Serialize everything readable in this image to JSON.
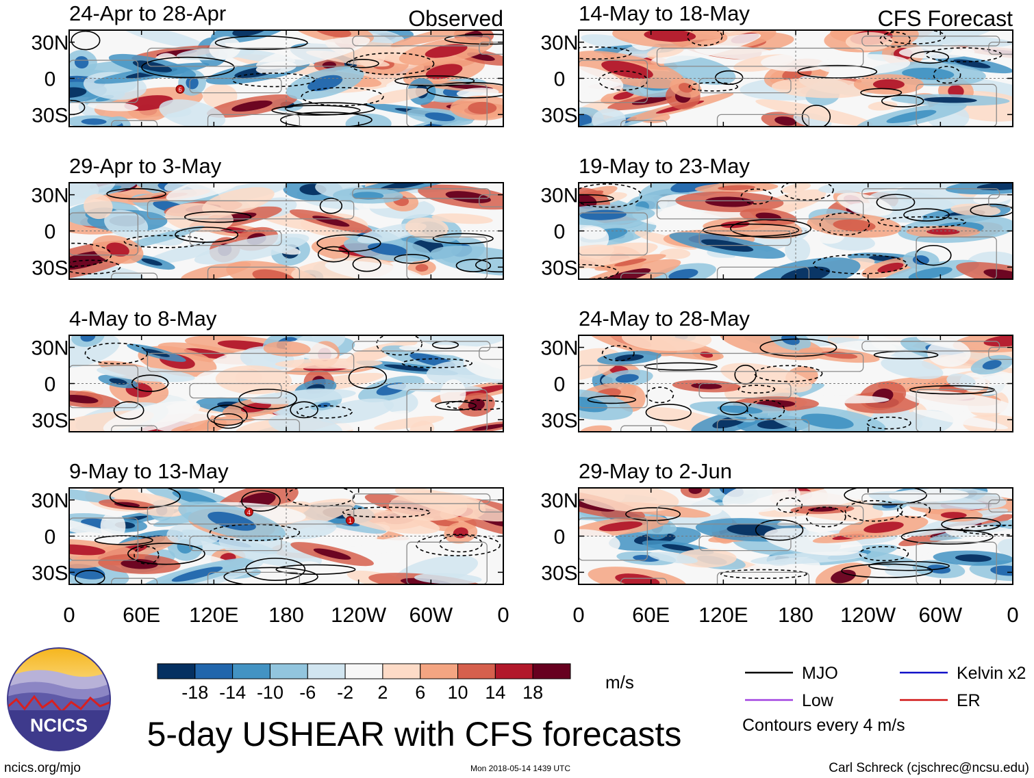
{
  "chart_data": {
    "type": "heatmap",
    "title": "5-day USHEAR with CFS forecasts",
    "variable": "USHEAR",
    "units": "m/s",
    "section_labels": {
      "observed": "Observed",
      "forecast": "CFS Forecast"
    },
    "x_ticks": [
      {
        "lon": 0,
        "label": "0"
      },
      {
        "lon": 60,
        "label": "60E"
      },
      {
        "lon": 120,
        "label": "120E"
      },
      {
        "lon": 180,
        "label": "180"
      },
      {
        "lon": 240,
        "label": "120W"
      },
      {
        "lon": 300,
        "label": "60W"
      },
      {
        "lon": 360,
        "label": "0"
      }
    ],
    "y_ticks": [
      {
        "lat": 30,
        "label": "30N"
      },
      {
        "lat": 0,
        "label": "0"
      },
      {
        "lat": -30,
        "label": "30S"
      }
    ],
    "xlim": [
      0,
      360
    ],
    "ylim": [
      -40,
      40
    ],
    "panels": [
      {
        "title": "24-Apr to 28-Apr",
        "section": "observed",
        "seed": 3,
        "cyclones": [
          {
            "lon": 92,
            "lat": -9,
            "label": "6"
          }
        ]
      },
      {
        "title": "29-Apr to 3-May",
        "section": "observed",
        "seed": 11,
        "cyclones": []
      },
      {
        "title": "4-May to 8-May",
        "section": "observed",
        "seed": 19,
        "cyclones": []
      },
      {
        "title": "9-May to 13-May",
        "section": "observed",
        "seed": 27,
        "cyclones": [
          {
            "lon": 149,
            "lat": 20,
            "label": "4"
          },
          {
            "lon": 233,
            "lat": 13,
            "label": "1"
          }
        ]
      },
      {
        "title": "14-May to 18-May",
        "section": "forecast",
        "seed": 35,
        "cyclones": []
      },
      {
        "title": "19-May to 23-May",
        "section": "forecast",
        "seed": 43,
        "cyclones": []
      },
      {
        "title": "24-May to 28-May",
        "section": "forecast",
        "seed": 51,
        "cyclones": []
      },
      {
        "title": "29-May to 2-Jun",
        "section": "forecast",
        "seed": 59,
        "cyclones": []
      }
    ],
    "colorbar": {
      "ticks": [
        "-18",
        "-14",
        "-10",
        "-6",
        "-2",
        "2",
        "6",
        "10",
        "14",
        "18"
      ],
      "colors": [
        "#053061",
        "#2166ac",
        "#4393c3",
        "#92c5de",
        "#d1e5f0",
        "#f7f7f7",
        "#fddbc7",
        "#f4a582",
        "#d6604d",
        "#b2182b",
        "#67001f"
      ]
    },
    "legend": {
      "items": [
        {
          "label": "MJO",
          "color": "#000000"
        },
        {
          "label": "Kelvin x2",
          "color": "#1010c8"
        },
        {
          "label": "Low",
          "color": "#a040e0"
        },
        {
          "label": "ER",
          "color": "#d01010"
        }
      ],
      "note": "Contours every 4 m/s"
    }
  },
  "logo_text": "NCICS",
  "footer": {
    "left": "ncics.org/mjo",
    "center": "Mon 2018-05-14 1439 UTC",
    "right": "Carl Schreck (cjschrec@ncsu.edu)"
  }
}
